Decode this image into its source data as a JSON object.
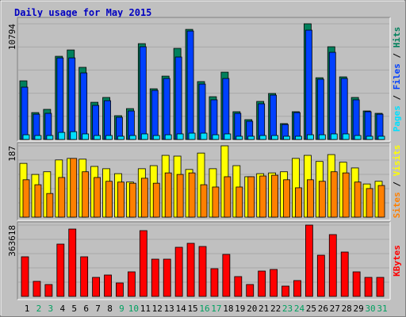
{
  "chart_data": [
    {
      "type": "bar",
      "title": "Daily usage for May 2015",
      "ylim": [
        0,
        10794
      ],
      "yticks": [
        10794
      ],
      "legend_separator": " / ",
      "series": [
        {
          "name": "Pages",
          "color": "#00e0ff",
          "values": [
            440,
            370,
            370,
            660,
            730,
            520,
            370,
            370,
            300,
            370,
            520,
            370,
            440,
            520,
            590,
            590,
            440,
            520,
            300,
            300,
            370,
            370,
            300,
            300,
            440,
            440,
            520,
            520,
            370,
            300,
            300
          ]
        },
        {
          "name": "Files",
          "color": "#0040ff",
          "values": [
            4880,
            2360,
            2440,
            7610,
            7610,
            6210,
            3180,
            3620,
            2070,
            2660,
            8650,
            4580,
            5690,
            7690,
            10120,
            5170,
            3700,
            5690,
            2440,
            1700,
            3330,
            4140,
            1400,
            2510,
            10200,
            5620,
            8130,
            5690,
            3700,
            2590,
            2360
          ]
        },
        {
          "name": "Hits",
          "color": "#00805c",
          "values": [
            5470,
            2510,
            2810,
            7760,
            8350,
            6730,
            3470,
            3920,
            2220,
            2880,
            8940,
            4730,
            5910,
            8500,
            10270,
            5400,
            3990,
            6280,
            2590,
            1850,
            3550,
            4290,
            1480,
            2590,
            10794,
            5760,
            8650,
            5840,
            3920,
            2660,
            2440
          ]
        }
      ]
    },
    {
      "type": "bar",
      "ylim": [
        0,
        187
      ],
      "yticks": [
        187
      ],
      "legend_separator": " / ",
      "series": [
        {
          "name": "Sites",
          "color": "#ff8000",
          "values": [
            98,
            85,
            62,
            104,
            154,
            119,
            104,
            94,
            92,
            89,
            102,
            89,
            116,
            112,
            116,
            85,
            79,
            106,
            79,
            106,
            108,
            110,
            98,
            77,
            98,
            94,
            119,
            116,
            92,
            75,
            83
          ]
        },
        {
          "name": "Visits",
          "color": "#ffff00",
          "values": [
            141,
            112,
            119,
            150,
            154,
            152,
            133,
            127,
            114,
            92,
            127,
            135,
            162,
            160,
            125,
            168,
            127,
            187,
            135,
            106,
            114,
            116,
            119,
            154,
            162,
            146,
            164,
            144,
            129,
            87,
            94
          ]
        }
      ]
    },
    {
      "type": "bar",
      "ylim": [
        0,
        363618
      ],
      "yticks": [
        363618
      ],
      "categories": [
        "1",
        "2",
        "3",
        "4",
        "5",
        "6",
        "7",
        "8",
        "9",
        "10",
        "11",
        "12",
        "13",
        "14",
        "15",
        "16",
        "17",
        "18",
        "19",
        "20",
        "21",
        "22",
        "23",
        "24",
        "25",
        "26",
        "27",
        "28",
        "29",
        "30",
        "31"
      ],
      "category_colors": [
        "#000000",
        "#00a060",
        "#00a060",
        "#000000",
        "#000000",
        "#000000",
        "#000000",
        "#000000",
        "#00a060",
        "#00a060",
        "#000000",
        "#000000",
        "#000000",
        "#000000",
        "#000000",
        "#00a060",
        "#00a060",
        "#000000",
        "#000000",
        "#000000",
        "#000000",
        "#000000",
        "#00a060",
        "#00a060",
        "#000000",
        "#000000",
        "#000000",
        "#000000",
        "#000000",
        "#00a060",
        "#00a060"
      ],
      "series": [
        {
          "name": "KBytes",
          "color": "#ff0000",
          "values": [
            202000,
            76760,
            60600,
            266640,
            343400,
            202000,
            96960,
            109080,
            68680,
            125240,
            335320,
            189880,
            189880,
            250480,
            270680,
            254520,
            141400,
            214120,
            101000,
            60600,
            129280,
            137360,
            52520,
            80800,
            363618,
            210080,
            315120,
            226240,
            125240,
            96960,
            96960
          ]
        }
      ]
    }
  ]
}
